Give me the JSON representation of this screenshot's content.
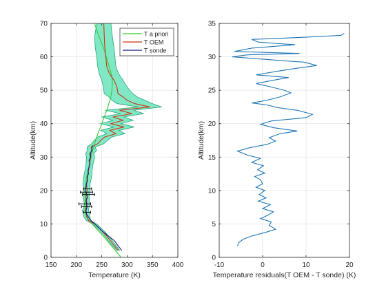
{
  "chart_data": [
    {
      "type": "line",
      "xlabel": "Temperature (K)",
      "ylabel": "Altitude(km)",
      "xlim": [
        150,
        400
      ],
      "ylim": [
        0,
        70
      ],
      "xticks": [
        150,
        200,
        250,
        300,
        350,
        400
      ],
      "yticks": [
        0,
        10,
        20,
        30,
        40,
        50,
        60,
        70
      ],
      "grid": true,
      "legend": {
        "placement": "top-right",
        "entries": [
          "T a priori",
          "T OEM",
          "T sonde"
        ]
      },
      "colors": {
        "apriori": "#33cc33",
        "oem": "#cc3311",
        "sonde": "#1a1a80",
        "band_fill": "#73e6bf",
        "band_edge": "#2aa37a",
        "sonde_error": "#000000"
      },
      "series": [
        {
          "name": "T a priori",
          "points": [
            [
              288,
              0
            ],
            [
              277,
              2
            ],
            [
              266,
              4
            ],
            [
              255,
              6
            ],
            [
              243,
              8
            ],
            [
              231,
              10
            ],
            [
              220,
              12
            ],
            [
              217,
              14
            ],
            [
              217,
              16
            ],
            [
              217,
              18
            ],
            [
              217,
              20
            ],
            [
              218,
              22
            ],
            [
              220,
              24
            ],
            [
              223,
              26
            ],
            [
              226,
              28
            ],
            [
              229,
              30
            ],
            [
              232,
              32
            ],
            [
              236,
              34
            ],
            [
              240,
              36
            ],
            [
              245,
              38
            ],
            [
              250,
              40
            ],
            [
              255,
              42
            ],
            [
              260,
              44
            ],
            [
              264,
              46
            ],
            [
              268,
              48
            ],
            [
              270,
              50
            ],
            [
              271,
              52
            ],
            [
              270,
              54
            ],
            [
              267,
              56
            ],
            [
              263,
              58
            ],
            [
              259,
              60
            ],
            [
              255,
              62
            ],
            [
              250,
              64
            ],
            [
              245,
              66
            ],
            [
              240,
              68
            ],
            [
              236,
              70
            ]
          ]
        },
        {
          "name": "T OEM",
          "points": [
            [
              283,
              2
            ],
            [
              272,
              4
            ],
            [
              262,
              6
            ],
            [
              250,
              8
            ],
            [
              236,
              10
            ],
            [
              224,
              11
            ],
            [
              221,
              12
            ],
            [
              218,
              14
            ],
            [
              221,
              16
            ],
            [
              219,
              18
            ],
            [
              221,
              20
            ],
            [
              220,
              22
            ],
            [
              222,
              24
            ],
            [
              224,
              26
            ],
            [
              226,
              28
            ],
            [
              228,
              30
            ],
            [
              226,
              31
            ],
            [
              231,
              32
            ],
            [
              229,
              33
            ],
            [
              242,
              34
            ],
            [
              248,
              35
            ],
            [
              256,
              36
            ],
            [
              278,
              37
            ],
            [
              266,
              38
            ],
            [
              294,
              39
            ],
            [
              268,
              40
            ],
            [
              292,
              41
            ],
            [
              272,
              42
            ],
            [
              310,
              43
            ],
            [
              285,
              44
            ],
            [
              345,
              45
            ],
            [
              315,
              46
            ],
            [
              300,
              47
            ],
            [
              292,
              48
            ],
            [
              282,
              49
            ],
            [
              280,
              51
            ],
            [
              274,
              53
            ],
            [
              265,
              55
            ],
            [
              260,
              57
            ],
            [
              258,
              60
            ],
            [
              256,
              63
            ],
            [
              255,
              66
            ],
            [
              254,
              70
            ]
          ]
        },
        {
          "name": "T sonde",
          "points": [
            [
              290,
              2
            ],
            [
              282,
              3.5
            ],
            [
              275,
              5
            ],
            [
              262,
              6.5
            ],
            [
              250,
              8
            ],
            [
              240,
              9.5
            ],
            [
              229,
              11
            ],
            [
              224,
              12
            ],
            [
              220,
              13
            ],
            [
              219,
              14
            ],
            [
              221,
              15
            ],
            [
              220,
              16
            ],
            [
              219,
              17
            ],
            [
              222,
              18
            ],
            [
              220,
              19
            ],
            [
              217,
              20
            ],
            [
              219,
              21
            ],
            [
              220,
              22
            ],
            [
              222,
              23
            ],
            [
              221,
              24
            ],
            [
              224,
              25
            ],
            [
              223,
              26
            ],
            [
              225,
              27
            ],
            [
              227,
              28
            ],
            [
              225,
              29
            ],
            [
              228,
              30
            ],
            [
              228,
              31
            ],
            [
              230,
              32
            ],
            [
              231,
              33
            ],
            [
              232,
              33.5
            ]
          ]
        }
      ],
      "uncertainty_band": {
        "upper": [
          [
            286,
            2
          ],
          [
            276,
            4
          ],
          [
            266,
            6
          ],
          [
            254,
            8
          ],
          [
            240,
            10
          ],
          [
            228,
            11
          ],
          [
            227,
            12
          ],
          [
            224,
            14
          ],
          [
            226,
            16
          ],
          [
            225,
            18
          ],
          [
            227,
            20
          ],
          [
            227,
            22
          ],
          [
            230,
            24
          ],
          [
            231,
            26
          ],
          [
            233,
            28
          ],
          [
            236,
            30
          ],
          [
            234,
            31
          ],
          [
            240,
            32
          ],
          [
            237,
            33
          ],
          [
            254,
            34
          ],
          [
            261,
            35
          ],
          [
            270,
            36
          ],
          [
            296,
            37
          ],
          [
            284,
            38
          ],
          [
            314,
            39
          ],
          [
            288,
            40
          ],
          [
            312,
            41
          ],
          [
            294,
            42
          ],
          [
            333,
            43
          ],
          [
            313,
            44
          ],
          [
            368,
            45
          ],
          [
            350,
            46
          ],
          [
            335,
            47
          ],
          [
            320,
            48
          ],
          [
            311,
            49
          ],
          [
            305,
            50
          ],
          [
            300,
            51
          ],
          [
            292,
            53
          ],
          [
            283,
            55
          ],
          [
            278,
            57
          ],
          [
            276,
            60
          ],
          [
            274,
            63
          ],
          [
            271,
            66
          ],
          [
            268,
            70
          ]
        ],
        "lower": [
          [
            280,
            2
          ],
          [
            268,
            4
          ],
          [
            258,
            6
          ],
          [
            246,
            8
          ],
          [
            232,
            10
          ],
          [
            220,
            11
          ],
          [
            215,
            12
          ],
          [
            212,
            14
          ],
          [
            216,
            16
          ],
          [
            213,
            18
          ],
          [
            215,
            20
          ],
          [
            213,
            22
          ],
          [
            214,
            24
          ],
          [
            217,
            26
          ],
          [
            219,
            28
          ],
          [
            220,
            30
          ],
          [
            218,
            31
          ],
          [
            222,
            32
          ],
          [
            221,
            33
          ],
          [
            230,
            34
          ],
          [
            235,
            35
          ],
          [
            242,
            36
          ],
          [
            260,
            37
          ],
          [
            248,
            38
          ],
          [
            274,
            39
          ],
          [
            248,
            40
          ],
          [
            272,
            41
          ],
          [
            250,
            42
          ],
          [
            287,
            43
          ],
          [
            257,
            44
          ],
          [
            322,
            45
          ],
          [
            280,
            46
          ],
          [
            270,
            47
          ],
          [
            264,
            48
          ],
          [
            255,
            49
          ],
          [
            254,
            50
          ],
          [
            253,
            51
          ],
          [
            250,
            53
          ],
          [
            245,
            55
          ],
          [
            242,
            57
          ],
          [
            240,
            60
          ],
          [
            237,
            63
          ],
          [
            236,
            66
          ],
          [
            240,
            70
          ]
        ]
      },
      "sonde_error_bars": [
        {
          "y": 19.5,
          "x_min": 208,
          "x_max": 232
        },
        {
          "y": 18.8,
          "x_min": 212,
          "x_max": 236
        },
        {
          "y": 16,
          "x_min": 205,
          "x_max": 228
        },
        {
          "y": 15.2,
          "x_min": 210,
          "x_max": 230
        },
        {
          "y": 13.5,
          "x_min": 214,
          "x_max": 228
        },
        {
          "y": 20.5,
          "x_min": 214,
          "x_max": 230
        }
      ]
    },
    {
      "type": "line",
      "xlabel": "Temperature residuals(T OEM - T sonde) (K)",
      "ylabel": "Altitude(km)",
      "xlim": [
        -10,
        20
      ],
      "ylim": [
        0,
        35
      ],
      "xticks": [
        -10,
        0,
        10,
        20
      ],
      "yticks": [
        0,
        5,
        10,
        15,
        20,
        25,
        30,
        35
      ],
      "grid": true,
      "colors": {
        "residual": "#1f77b4"
      },
      "series": [
        {
          "points": [
            [
              -5.8,
              1.7
            ],
            [
              -5.5,
              2.2
            ],
            [
              -4.5,
              2.7
            ],
            [
              -2.5,
              3.2
            ],
            [
              0.5,
              3.7
            ],
            [
              3.0,
              4.2
            ],
            [
              1.5,
              4.8
            ],
            [
              2.0,
              5.3
            ],
            [
              -0.5,
              5.8
            ],
            [
              1.2,
              6.3
            ],
            [
              2.5,
              6.8
            ],
            [
              0.0,
              7.3
            ],
            [
              1.8,
              7.9
            ],
            [
              -1.0,
              8.4
            ],
            [
              0.8,
              8.9
            ],
            [
              -0.8,
              9.4
            ],
            [
              0.5,
              10.0
            ],
            [
              -1.5,
              10.5
            ],
            [
              0.0,
              11.0
            ],
            [
              -0.5,
              11.6
            ],
            [
              -1.8,
              12.1
            ],
            [
              0.5,
              12.6
            ],
            [
              -1.2,
              13.1
            ],
            [
              0.2,
              13.7
            ],
            [
              -2.5,
              14.2
            ],
            [
              -0.5,
              14.8
            ],
            [
              -3.5,
              15.3
            ],
            [
              -5.8,
              15.9
            ],
            [
              -3.0,
              16.4
            ],
            [
              1.0,
              16.9
            ],
            [
              3.0,
              17.4
            ],
            [
              1.5,
              17.9
            ],
            [
              4.0,
              18.5
            ],
            [
              8.0,
              18.9
            ],
            [
              2.5,
              19.4
            ],
            [
              -0.5,
              19.9
            ],
            [
              2.0,
              20.4
            ],
            [
              10.0,
              20.9
            ],
            [
              11.5,
              21.4
            ],
            [
              8.0,
              22.0
            ],
            [
              3.5,
              22.4
            ],
            [
              1.0,
              22.8
            ],
            [
              -2.5,
              23.1
            ],
            [
              1.0,
              23.5
            ],
            [
              4.0,
              24.0
            ],
            [
              6.5,
              24.6
            ],
            [
              5.0,
              25.0
            ],
            [
              2.5,
              25.4
            ],
            [
              -1.5,
              26.0
            ],
            [
              2.5,
              26.5
            ],
            [
              6.0,
              26.9
            ],
            [
              -1.5,
              27.3
            ],
            [
              3.0,
              27.8
            ],
            [
              8.0,
              28.3
            ],
            [
              12.5,
              28.7
            ],
            [
              9.5,
              29.2
            ],
            [
              3.0,
              29.5
            ],
            [
              -7.0,
              30.0
            ],
            [
              -3.5,
              30.3
            ],
            [
              8.5,
              30.5
            ],
            [
              -6.5,
              30.8
            ],
            [
              -2.5,
              31.3
            ],
            [
              7.5,
              31.8
            ],
            [
              -1.0,
              32.2
            ],
            [
              -2.5,
              32.6
            ],
            [
              8.5,
              32.9
            ],
            [
              18.0,
              33.2
            ],
            [
              18.8,
              33.5
            ]
          ]
        }
      ]
    }
  ]
}
